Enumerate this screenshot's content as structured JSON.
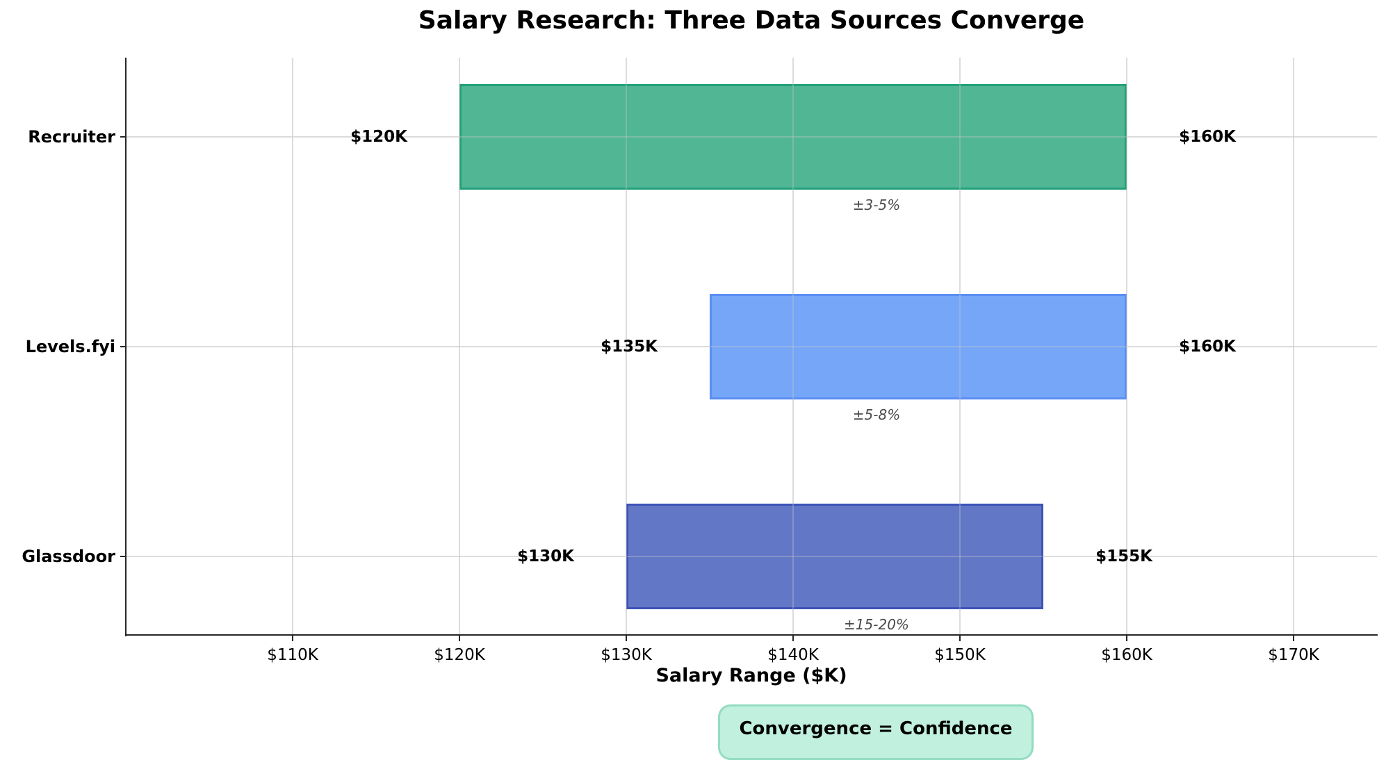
{
  "chart_data": {
    "type": "bar",
    "orientation": "horizontal-range",
    "title": "Salary Research: Three Data Sources Converge",
    "xlabel": "Salary Range ($K)",
    "ylabel": "",
    "xlim": [
      100,
      175
    ],
    "grid": true,
    "categories": [
      "Recruiter",
      "Levels.fyi",
      "Glassdoor"
    ],
    "series": [
      {
        "name": "Recruiter",
        "low": 120,
        "high": 160,
        "low_label": "$120K",
        "high_label": "$160K",
        "uncertainty": "±3-5%",
        "color": "#50b694",
        "edge": "#22a079"
      },
      {
        "name": "Levels.fyi",
        "low": 135,
        "high": 160,
        "low_label": "$135K",
        "high_label": "$160K",
        "uncertainty": "±5-8%",
        "color": "#76a6f8",
        "edge": "#5a8ef4"
      },
      {
        "name": "Glassdoor",
        "low": 130,
        "high": 155,
        "low_label": "$130K",
        "high_label": "$155K",
        "uncertainty": "±15-20%",
        "color": "#6278c6",
        "edge": "#3d53b8"
      }
    ],
    "xticks": [
      110,
      120,
      130,
      140,
      150,
      160,
      170
    ],
    "xtick_labels": [
      "$110K",
      "$120K",
      "$130K",
      "$140K",
      "$150K",
      "$160K",
      "$170K"
    ],
    "annotation": "Convergence = Confidence"
  },
  "title": "Salary Research: Three Data Sources Converge",
  "xlabel": "Salary Range ($K)",
  "note": "Convergence = Confidence"
}
